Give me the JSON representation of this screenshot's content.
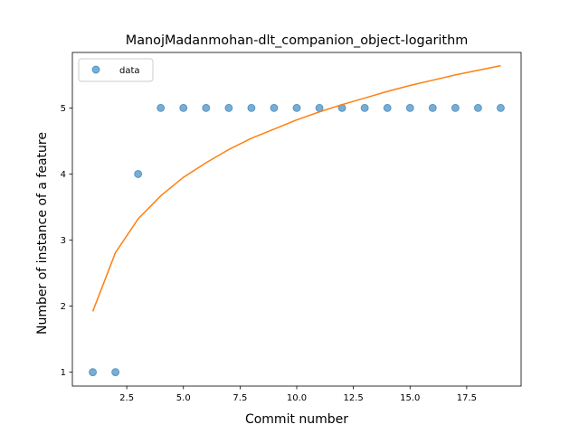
{
  "chart_data": {
    "type": "scatter",
    "title": "ManojMadanmohan-dlt_companion_object-logarithm",
    "xlabel": "Commit number",
    "ylabel": "Number of instance of a feature",
    "xlim": [
      0.1,
      19.9
    ],
    "ylim": [
      0.79,
      5.84
    ],
    "x_ticks": [
      2.5,
      5.0,
      7.5,
      10.0,
      12.5,
      15.0,
      17.5
    ],
    "x_tick_labels": [
      "2.5",
      "5.0",
      "7.5",
      "10.0",
      "12.5",
      "15.0",
      "17.5"
    ],
    "y_ticks": [
      1,
      2,
      3,
      4,
      5
    ],
    "y_tick_labels": [
      "1",
      "2",
      "3",
      "4",
      "5"
    ],
    "grid": false,
    "legend": {
      "placement": "upper-left",
      "entries": [
        "data"
      ]
    },
    "series": [
      {
        "name": "data",
        "kind": "points",
        "color": "#1f77b4",
        "x": [
          1,
          2,
          3,
          4,
          5,
          6,
          7,
          8,
          9,
          10,
          11,
          12,
          13,
          14,
          15,
          16,
          17,
          18,
          19
        ],
        "y": [
          1,
          1,
          4,
          5,
          5,
          5,
          5,
          5,
          5,
          5,
          5,
          5,
          5,
          5,
          5,
          5,
          5,
          5,
          5
        ]
      },
      {
        "kind": "line",
        "color": "#ff7f0e",
        "x": [
          1,
          2,
          3,
          4,
          5,
          6,
          7,
          8,
          9,
          10,
          11,
          12,
          13,
          14,
          15,
          16,
          17,
          18,
          19
        ],
        "y": [
          1.92,
          2.81,
          3.32,
          3.67,
          3.95,
          4.17,
          4.37,
          4.54,
          4.68,
          4.82,
          4.94,
          5.05,
          5.15,
          5.25,
          5.34,
          5.42,
          5.5,
          5.57,
          5.64
        ]
      }
    ]
  }
}
